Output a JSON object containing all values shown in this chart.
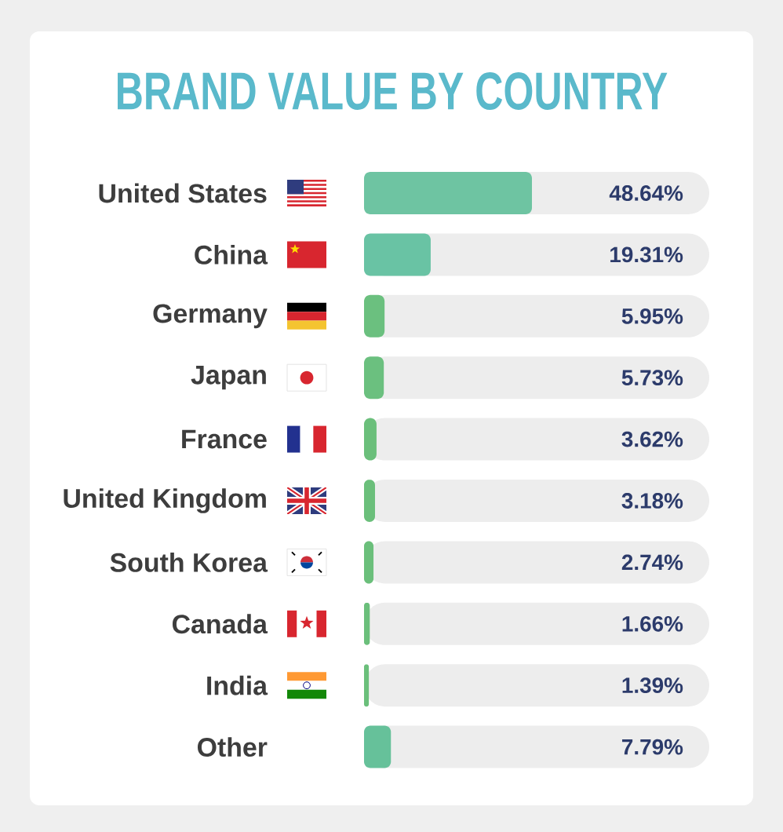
{
  "chart_data": {
    "type": "bar",
    "orientation": "horizontal",
    "title": "BRAND VALUE BY COUNTRY",
    "categories": [
      "United States",
      "China",
      "Germany",
      "Japan",
      "France",
      "United Kingdom",
      "South Korea",
      "Canada",
      "India",
      "Other"
    ],
    "values": [
      48.64,
      19.31,
      5.95,
      5.73,
      3.62,
      3.18,
      2.74,
      1.66,
      1.39,
      7.79
    ],
    "value_labels": [
      "48.64%",
      "19.31%",
      "5.95%",
      "5.73%",
      "3.62%",
      "3.18%",
      "2.74%",
      "1.66%",
      "1.39%",
      "7.79%"
    ],
    "colors": [
      "#6ec4a2",
      "#69c3a4",
      "#6bc07f",
      "#6bc07f",
      "#6bbf7b",
      "#6bbf7b",
      "#6bbf7b",
      "#6bbf7b",
      "#6bbf7b",
      "#66c19a"
    ],
    "xlim": [
      0,
      100
    ],
    "tick_labels": "y"
  }
}
